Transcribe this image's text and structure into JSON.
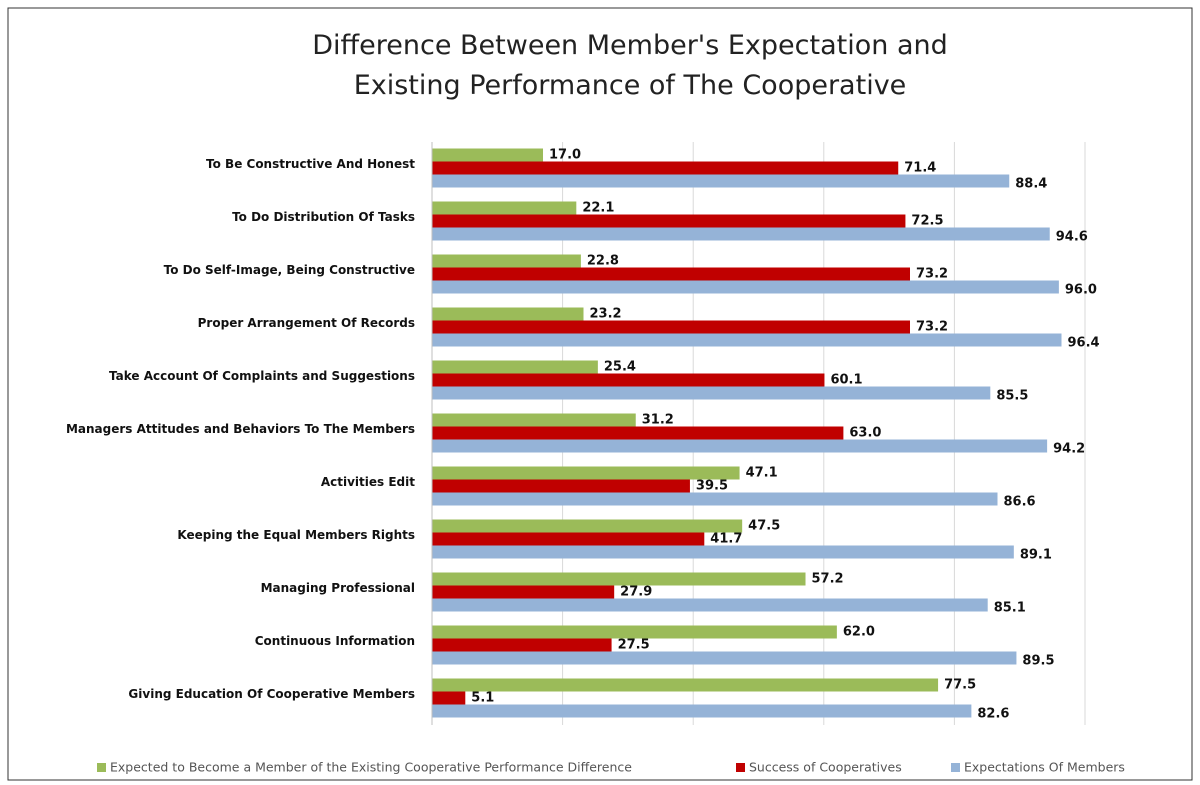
{
  "chart_data": {
    "type": "bar",
    "orientation": "horizontal",
    "title": "Difference Between Member's Expectation and Existing Performance of The Cooperative",
    "categories": [
      "To Be Constructive And Honest",
      "To Do Distribution Of Tasks",
      "To Do Self-Image, Being Constructive",
      "Proper Arrangement Of Records",
      "Take Account Of Complaints and Suggestions",
      "Managers Attitudes and Behaviors To The Members",
      "Activities Edit",
      "Keeping the Equal Members Rights",
      "Managing Professional",
      "Continuous Information",
      "Giving Education Of Cooperative Members"
    ],
    "series": [
      {
        "name": "Expected to Become a Member of the Existing Cooperative Performance Difference",
        "color": "#9bbb59",
        "values": [
          17.0,
          22.1,
          22.8,
          23.2,
          25.4,
          31.2,
          47.1,
          47.5,
          57.2,
          62.0,
          77.5
        ],
        "value_labels": [
          "17.0",
          "22.1",
          "22.8",
          "23.2",
          "25.4",
          "31.2",
          "47.1",
          "47.5",
          "57.2",
          "62.0",
          "77.5"
        ]
      },
      {
        "name": "Success of Cooperatives",
        "color": "#c00000",
        "values": [
          71.4,
          72.5,
          73.2,
          73.2,
          60.1,
          63.0,
          39.5,
          41.7,
          27.9,
          27.5,
          5.1
        ],
        "value_labels": [
          "71.4",
          "72.5",
          "73.2",
          "73.2",
          "60.1",
          "63.0",
          "39.5",
          "41.7",
          "27.9",
          "27.5",
          "5.1"
        ]
      },
      {
        "name": "Expectations Of Members",
        "color": "#95b3d7",
        "values": [
          88.4,
          94.6,
          96.0,
          96.4,
          85.5,
          94.2,
          86.6,
          89.1,
          85.1,
          89.5,
          82.6
        ],
        "value_labels": [
          "88.4",
          "94.6",
          "96.0",
          "96.4",
          "85.5",
          "94.2",
          "86.6",
          "89.1",
          "85.1",
          "89.5",
          "82.6"
        ]
      }
    ],
    "xlim": [
      0,
      100
    ],
    "xticks": [
      0,
      20,
      40,
      60,
      80,
      100
    ],
    "grid": true,
    "legend": "bottom"
  }
}
